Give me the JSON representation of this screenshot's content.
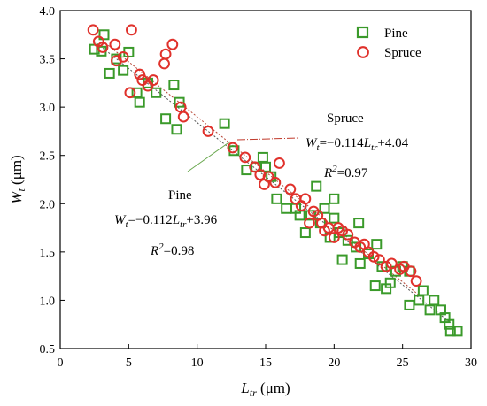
{
  "chart_data": {
    "type": "scatter",
    "title": "",
    "xlabel": {
      "base": "L",
      "sub": "tr",
      "unit": " (μm)"
    },
    "ylabel": {
      "base": "W",
      "sub": "t",
      "unit": " (μm)"
    },
    "xlim": [
      0,
      30
    ],
    "ylim": [
      0.5,
      4.0
    ],
    "xticks": [
      0,
      5,
      10,
      15,
      20,
      25,
      30
    ],
    "yticks": [
      0.5,
      1.0,
      1.5,
      2.0,
      2.5,
      3.0,
      3.5,
      4.0
    ],
    "xtick_labels": [
      "0",
      "5",
      "10",
      "15",
      "20",
      "25",
      "30"
    ],
    "ytick_labels": [
      "0.5",
      "1.0",
      "1.5",
      "2.0",
      "2.5",
      "3.0",
      "3.5",
      "4.0"
    ],
    "grid": false,
    "legend_position": "top-right",
    "series": [
      {
        "name": "Pine",
        "marker": "square",
        "color": "#3a9a2a",
        "fit": {
          "slope": -0.112,
          "intercept": 3.96,
          "range": [
            2.5,
            28.5
          ],
          "color": "#555555"
        },
        "points": [
          [
            2.5,
            3.6
          ],
          [
            3.0,
            3.58
          ],
          [
            3.2,
            3.75
          ],
          [
            3.6,
            3.35
          ],
          [
            4.1,
            3.5
          ],
          [
            4.6,
            3.38
          ],
          [
            5.0,
            3.57
          ],
          [
            5.6,
            3.15
          ],
          [
            5.8,
            3.05
          ],
          [
            6.4,
            3.25
          ],
          [
            7.0,
            3.15
          ],
          [
            7.7,
            2.88
          ],
          [
            8.3,
            3.23
          ],
          [
            8.5,
            2.77
          ],
          [
            8.7,
            3.05
          ],
          [
            12.0,
            2.83
          ],
          [
            12.7,
            2.55
          ],
          [
            13.6,
            2.35
          ],
          [
            14.3,
            2.38
          ],
          [
            14.8,
            2.48
          ],
          [
            15.0,
            2.38
          ],
          [
            15.4,
            2.28
          ],
          [
            15.8,
            2.05
          ],
          [
            16.5,
            1.95
          ],
          [
            17.2,
            1.95
          ],
          [
            17.5,
            1.88
          ],
          [
            17.9,
            1.7
          ],
          [
            18.3,
            1.88
          ],
          [
            18.7,
            2.18
          ],
          [
            19.0,
            1.8
          ],
          [
            19.3,
            1.95
          ],
          [
            19.7,
            1.65
          ],
          [
            20.0,
            2.05
          ],
          [
            20.0,
            1.85
          ],
          [
            20.4,
            1.7
          ],
          [
            20.6,
            1.42
          ],
          [
            21.0,
            1.62
          ],
          [
            21.6,
            1.55
          ],
          [
            21.8,
            1.8
          ],
          [
            21.9,
            1.38
          ],
          [
            22.5,
            1.48
          ],
          [
            23.0,
            1.15
          ],
          [
            23.1,
            1.58
          ],
          [
            23.5,
            1.35
          ],
          [
            23.8,
            1.12
          ],
          [
            24.1,
            1.18
          ],
          [
            24.5,
            1.3
          ],
          [
            25.0,
            1.35
          ],
          [
            25.5,
            1.3
          ],
          [
            25.5,
            0.95
          ],
          [
            26.2,
            1.0
          ],
          [
            26.5,
            1.1
          ],
          [
            27.0,
            0.9
          ],
          [
            27.3,
            1.0
          ],
          [
            27.8,
            0.9
          ],
          [
            28.1,
            0.82
          ],
          [
            28.4,
            0.75
          ],
          [
            28.5,
            0.68
          ],
          [
            29.0,
            0.68
          ]
        ]
      },
      {
        "name": "Spruce",
        "marker": "circle",
        "color": "#e0312b",
        "fit": {
          "slope": -0.114,
          "intercept": 4.04,
          "range": [
            2.5,
            26.5
          ],
          "color": "#b84a3a"
        },
        "points": [
          [
            2.4,
            3.8
          ],
          [
            2.8,
            3.68
          ],
          [
            3.1,
            3.62
          ],
          [
            4.0,
            3.65
          ],
          [
            4.1,
            3.48
          ],
          [
            4.6,
            3.52
          ],
          [
            5.2,
            3.8
          ],
          [
            5.1,
            3.15
          ],
          [
            5.8,
            3.34
          ],
          [
            6.0,
            3.28
          ],
          [
            6.4,
            3.22
          ],
          [
            6.8,
            3.28
          ],
          [
            7.6,
            3.45
          ],
          [
            7.7,
            3.55
          ],
          [
            8.2,
            3.65
          ],
          [
            8.8,
            3.0
          ],
          [
            9.0,
            2.9
          ],
          [
            10.8,
            2.75
          ],
          [
            12.6,
            2.58
          ],
          [
            13.5,
            2.48
          ],
          [
            14.2,
            2.38
          ],
          [
            14.6,
            2.3
          ],
          [
            14.9,
            2.2
          ],
          [
            15.2,
            2.28
          ],
          [
            15.7,
            2.22
          ],
          [
            16.0,
            2.42
          ],
          [
            16.8,
            2.15
          ],
          [
            17.2,
            2.05
          ],
          [
            17.6,
            1.98
          ],
          [
            17.9,
            2.05
          ],
          [
            18.2,
            1.8
          ],
          [
            18.5,
            1.92
          ],
          [
            18.8,
            1.88
          ],
          [
            19.1,
            1.8
          ],
          [
            19.3,
            1.72
          ],
          [
            19.6,
            1.75
          ],
          [
            20.0,
            1.65
          ],
          [
            20.3,
            1.75
          ],
          [
            20.6,
            1.72
          ],
          [
            21.0,
            1.68
          ],
          [
            21.5,
            1.6
          ],
          [
            21.9,
            1.55
          ],
          [
            22.2,
            1.58
          ],
          [
            22.5,
            1.5
          ],
          [
            22.9,
            1.45
          ],
          [
            23.3,
            1.42
          ],
          [
            23.8,
            1.35
          ],
          [
            24.2,
            1.38
          ],
          [
            24.8,
            1.32
          ],
          [
            25.1,
            1.35
          ],
          [
            25.6,
            1.3
          ],
          [
            26.0,
            1.2
          ]
        ]
      }
    ],
    "annotations": [
      {
        "series": "Spruce",
        "name_label": "Spruce",
        "eq": {
          "var": "W",
          "var_sub": "t",
          "eq_sign": "=−0.114",
          "x_var": "L",
          "x_sub": "tr",
          "const": "+4.04"
        },
        "r2": {
          "label": "R",
          "sup": "2",
          "value": "=0.97"
        }
      },
      {
        "series": "Pine",
        "name_label": "Pine",
        "eq": {
          "var": "W",
          "var_sub": "t",
          "eq_sign": "=−0.112",
          "x_var": "L",
          "x_sub": "tr",
          "const": "+3.96"
        },
        "r2": {
          "label": "R",
          "sup": "2",
          "value": "=0.98"
        }
      }
    ]
  }
}
